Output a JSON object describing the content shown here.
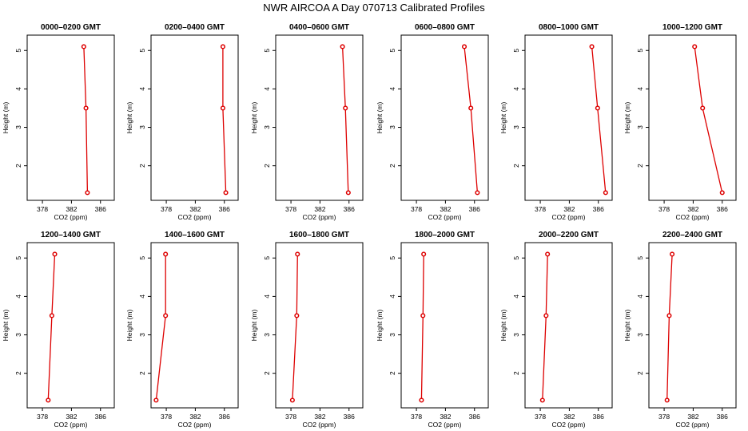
{
  "figure": {
    "title": "NWR AIRCOA A  Day 070713  Calibrated Profiles"
  },
  "chart_data": {
    "type": "line",
    "panel_count": 12,
    "xlabel": "CO2 (ppm)",
    "ylabel": "Height (m)",
    "xlim": [
      375.9,
      387.9
    ],
    "ylim": [
      1.1,
      5.4
    ],
    "xticks": [
      378,
      382,
      386
    ],
    "yticks": [
      2,
      3,
      4,
      5
    ],
    "grid": false,
    "line_color": "#dd0000",
    "panels": [
      {
        "title": "0000–0200 GMT",
        "points": [
          {
            "co2": 383.7,
            "height": 5.1
          },
          {
            "co2": 384.0,
            "height": 3.5
          },
          {
            "co2": 384.2,
            "height": 1.3
          }
        ]
      },
      {
        "title": "0200–0400 GMT",
        "points": [
          {
            "co2": 385.8,
            "height": 5.1
          },
          {
            "co2": 385.8,
            "height": 3.5
          },
          {
            "co2": 386.2,
            "height": 1.3
          }
        ]
      },
      {
        "title": "0400–0600 GMT",
        "points": [
          {
            "co2": 385.1,
            "height": 5.1
          },
          {
            "co2": 385.5,
            "height": 3.5
          },
          {
            "co2": 385.9,
            "height": 1.3
          }
        ]
      },
      {
        "title": "0600–0800 GMT",
        "points": [
          {
            "co2": 384.6,
            "height": 5.1
          },
          {
            "co2": 385.5,
            "height": 3.5
          },
          {
            "co2": 386.4,
            "height": 1.3
          }
        ]
      },
      {
        "title": "0800–1000 GMT",
        "points": [
          {
            "co2": 385.1,
            "height": 5.1
          },
          {
            "co2": 385.9,
            "height": 3.5
          },
          {
            "co2": 387.0,
            "height": 1.3
          }
        ]
      },
      {
        "title": "1000–1200 GMT",
        "points": [
          {
            "co2": 382.2,
            "height": 5.1
          },
          {
            "co2": 383.3,
            "height": 3.5
          },
          {
            "co2": 386.0,
            "height": 1.3
          }
        ]
      },
      {
        "title": "1200–1400 GMT",
        "points": [
          {
            "co2": 379.7,
            "height": 5.1
          },
          {
            "co2": 379.3,
            "height": 3.5
          },
          {
            "co2": 378.8,
            "height": 1.3
          }
        ]
      },
      {
        "title": "1400–1600 GMT",
        "points": [
          {
            "co2": 377.9,
            "height": 5.1
          },
          {
            "co2": 377.9,
            "height": 3.5
          },
          {
            "co2": 376.6,
            "height": 1.3
          }
        ]
      },
      {
        "title": "1600–1800 GMT",
        "points": [
          {
            "co2": 378.9,
            "height": 5.1
          },
          {
            "co2": 378.8,
            "height": 3.5
          },
          {
            "co2": 378.2,
            "height": 1.3
          }
        ]
      },
      {
        "title": "1800–2000 GMT",
        "points": [
          {
            "co2": 379.0,
            "height": 5.1
          },
          {
            "co2": 378.9,
            "height": 3.5
          },
          {
            "co2": 378.7,
            "height": 1.3
          }
        ]
      },
      {
        "title": "2000–2200 GMT",
        "points": [
          {
            "co2": 379.0,
            "height": 5.1
          },
          {
            "co2": 378.8,
            "height": 3.5
          },
          {
            "co2": 378.3,
            "height": 1.3
          }
        ]
      },
      {
        "title": "2200–2400 GMT",
        "points": [
          {
            "co2": 379.1,
            "height": 5.1
          },
          {
            "co2": 378.7,
            "height": 3.5
          },
          {
            "co2": 378.4,
            "height": 1.3
          }
        ]
      }
    ]
  }
}
